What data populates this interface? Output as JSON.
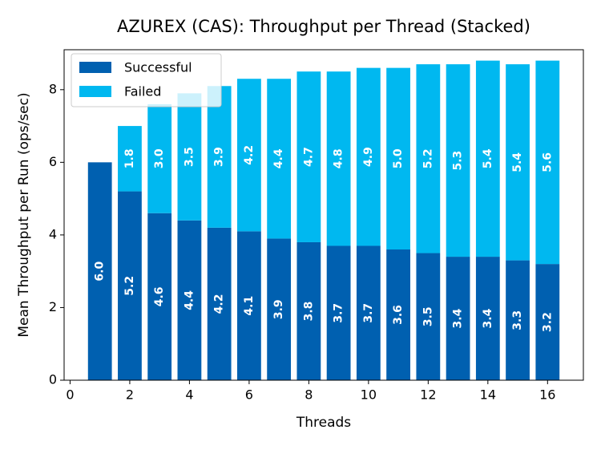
{
  "chart_data": {
    "type": "stacked_bar",
    "title": "AZUREX (CAS): Throughput per Thread (Stacked)",
    "x_label": "Threads",
    "y_label": "Mean Throughput per Run (ops/sec)",
    "x": [
      1,
      2,
      3,
      4,
      5,
      6,
      7,
      8,
      9,
      10,
      11,
      12,
      13,
      14,
      15,
      16
    ],
    "series": [
      {
        "name": "Successful",
        "color": "#0060b0",
        "values": [
          6.0,
          5.2,
          4.6,
          4.4,
          4.2,
          4.1,
          3.9,
          3.8,
          3.7,
          3.7,
          3.6,
          3.5,
          3.4,
          3.4,
          3.3,
          3.2
        ],
        "value_labels": [
          "6.0",
          "5.2",
          "4.6",
          "4.4",
          "4.2",
          "4.1",
          "3.9",
          "3.8",
          "3.7",
          "3.7",
          "3.6",
          "3.5",
          "3.4",
          "3.4",
          "3.3",
          "3.2"
        ]
      },
      {
        "name": "Failed",
        "color": "#00b8f0",
        "values": [
          null,
          1.8,
          3.0,
          3.5,
          3.9,
          4.2,
          4.4,
          4.7,
          4.8,
          4.9,
          5.0,
          5.2,
          5.3,
          5.4,
          5.4,
          5.6
        ],
        "value_labels": [
          null,
          "1.8",
          "3.0",
          "3.5",
          "3.9",
          "4.2",
          "4.4",
          "4.7",
          "4.8",
          "4.9",
          "5.0",
          "5.2",
          "5.3",
          "5.4",
          "5.4",
          "5.6"
        ]
      }
    ],
    "xlim": [
      -0.2,
      17.2
    ],
    "xticks": [
      0,
      2,
      4,
      6,
      8,
      10,
      12,
      14,
      16
    ],
    "ylim": [
      0,
      9.1
    ],
    "yticks": [
      0,
      2,
      4,
      6,
      8
    ],
    "bar_width": 0.8,
    "legend": "upper-left"
  }
}
